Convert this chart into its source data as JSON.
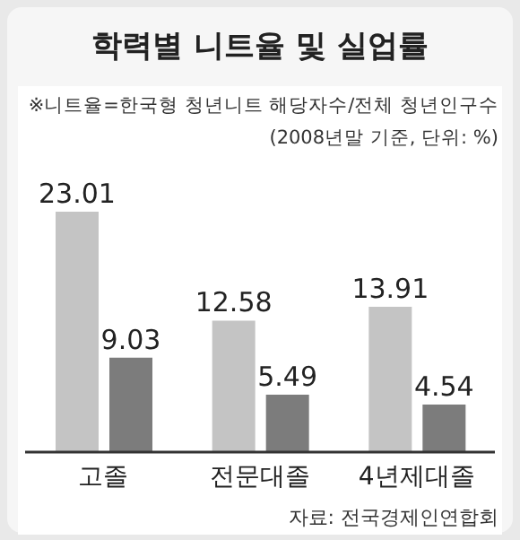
{
  "chart_data": {
    "type": "bar",
    "title": "학력별 니트율 및 실업률",
    "annotations": [
      "※니트율=한국형 청년니트 해당자수/전체 청년인구수",
      "(2008년말 기준, 단위: %)",
      "자료: 전국경제인연합회"
    ],
    "categories": [
      "고졸",
      "전문대졸",
      "4년제대졸"
    ],
    "series": [
      {
        "color": "#c4c4c4",
        "values": [
          23.01,
          12.58,
          13.91
        ]
      },
      {
        "color": "#7c7c7c",
        "values": [
          9.03,
          5.49,
          4.54
        ]
      }
    ],
    "data_labels": true,
    "grid": false,
    "legend": false
  }
}
